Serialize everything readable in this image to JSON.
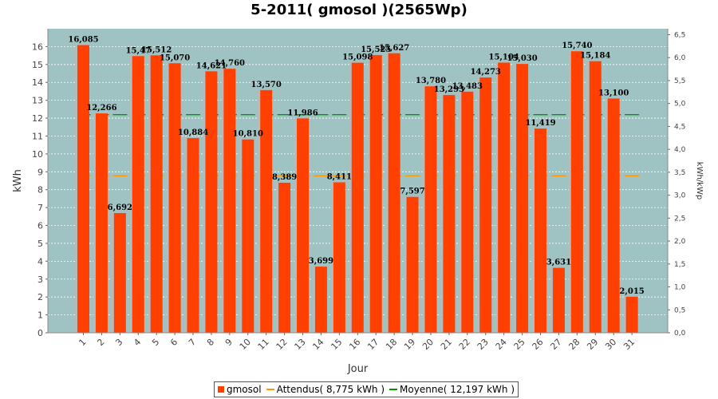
{
  "chart_data": {
    "type": "bar",
    "title": "5-2011( gmosol )(2565Wp)",
    "xlabel": "Jour",
    "ylabel": "kWh",
    "y2label": "kWh/kWp",
    "ylim": [
      0,
      17
    ],
    "y2lim": [
      0,
      6.63
    ],
    "yticks": [
      "0",
      "1",
      "2",
      "3",
      "4",
      "5",
      "6",
      "7",
      "8",
      "9",
      "10",
      "11",
      "12",
      "13",
      "14",
      "15",
      "16"
    ],
    "y2ticks": [
      "0,0",
      "0,5",
      "1,0",
      "1,5",
      "2,0",
      "2,5",
      "3,0",
      "3,5",
      "4,0",
      "4,5",
      "5,0",
      "5,5",
      "6,0",
      "6,5"
    ],
    "categories": [
      "1",
      "2",
      "3",
      "4",
      "5",
      "6",
      "7",
      "8",
      "9",
      "10",
      "11",
      "12",
      "13",
      "14",
      "15",
      "16",
      "17",
      "18",
      "19",
      "20",
      "21",
      "22",
      "23",
      "24",
      "25",
      "26",
      "27",
      "28",
      "29",
      "30",
      "31"
    ],
    "series": [
      {
        "name": "gmosol",
        "values": [
          16.085,
          12.266,
          6.692,
          15.47,
          15.512,
          15.07,
          10.884,
          14.621,
          14.76,
          10.81,
          13.57,
          8.389,
          11.986,
          3.699,
          8.411,
          15.098,
          15.525,
          15.627,
          7.597,
          13.78,
          13.293,
          13.483,
          14.273,
          15.104,
          15.03,
          11.419,
          3.631,
          15.74,
          15.184,
          13.1,
          2.015
        ],
        "labels": [
          "16,085",
          "12,266",
          "6,692",
          "15,47",
          "15,512",
          "15,070",
          "10,884",
          "14,621",
          "14,760",
          "10,810",
          "13,570",
          "8,389",
          "11,986",
          "3,699",
          "8,411",
          "15,098",
          "15,525",
          "15,627",
          "7,597",
          "13,780",
          "13,293",
          "13,483",
          "14,273",
          "15,104",
          "15,030",
          "11,419",
          "3,631",
          "15,740",
          "15,184",
          "13,100",
          "2,015"
        ]
      }
    ],
    "reference_lines": [
      {
        "name": "Attendus",
        "value": 8.775,
        "color": "#ff9900"
      },
      {
        "name": "Moyenne",
        "value": 12.197,
        "color": "#009900"
      }
    ],
    "legend": {
      "placement": "bottom",
      "items": [
        "gmosol",
        "Attendus( 8,775 kWh )",
        "Moyenne( 12,197 kWh )"
      ]
    },
    "grid": true,
    "colors": {
      "bar": "#ff4000",
      "bar_shadow": "#b9b9b9",
      "plot_background": "#9fc3c3",
      "attendus": "#ff9900",
      "moyenne": "#009900"
    }
  }
}
